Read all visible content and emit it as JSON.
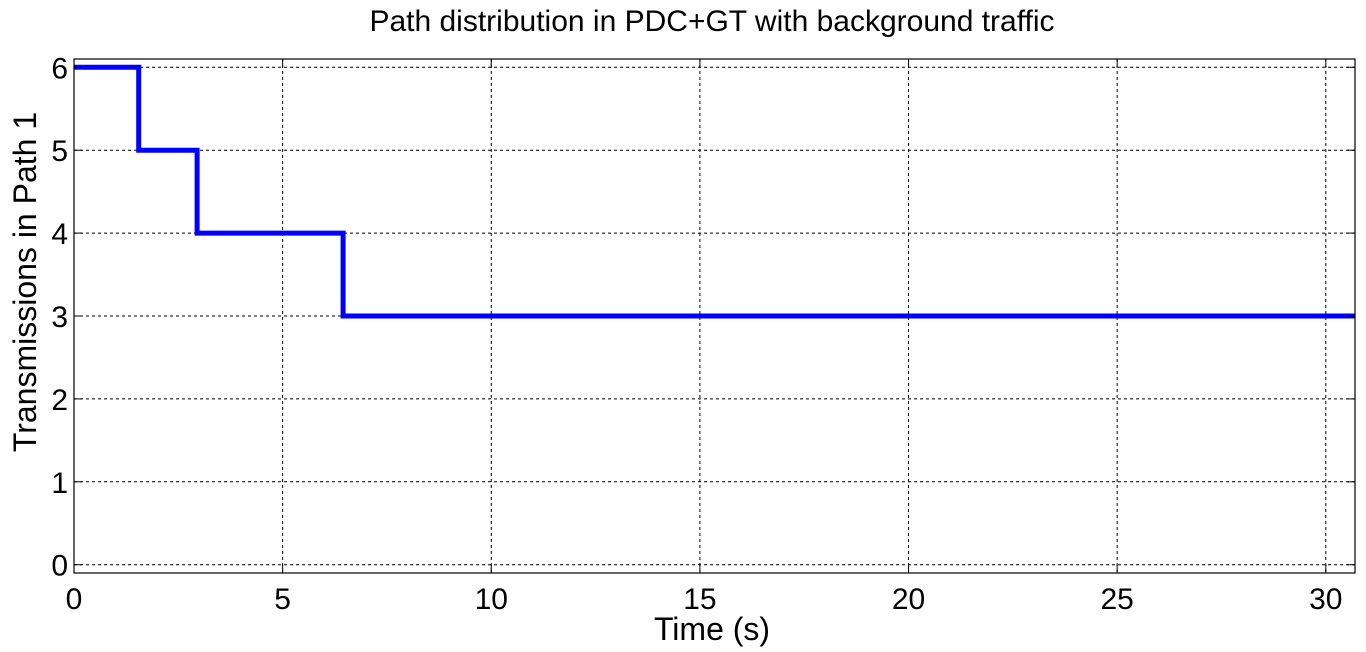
{
  "chart_data": {
    "type": "line",
    "title": "Path distribution in PDC+GT with background traffic",
    "xlabel": "Time (s)",
    "ylabel": "Transmissions in Path 1",
    "xlim": [
      0,
      30.7
    ],
    "ylim": [
      -0.1,
      6.1
    ],
    "xticks": [
      0,
      5,
      10,
      15,
      20,
      25,
      30
    ],
    "yticks": [
      0,
      1,
      2,
      3,
      4,
      5,
      6
    ],
    "xtick_labels": [
      "0",
      "5",
      "10",
      "15",
      "20",
      "25",
      "30"
    ],
    "ytick_labels": [
      "0",
      "1",
      "2",
      "3",
      "4",
      "5",
      "6"
    ],
    "grid": true,
    "step": true,
    "series": [
      {
        "color": "#0000ff",
        "x": [
          0,
          1.55,
          1.55,
          2.95,
          2.95,
          6.45,
          6.45,
          30.7
        ],
        "y": [
          6,
          6,
          5,
          5,
          4,
          4,
          3,
          3
        ]
      }
    ]
  }
}
